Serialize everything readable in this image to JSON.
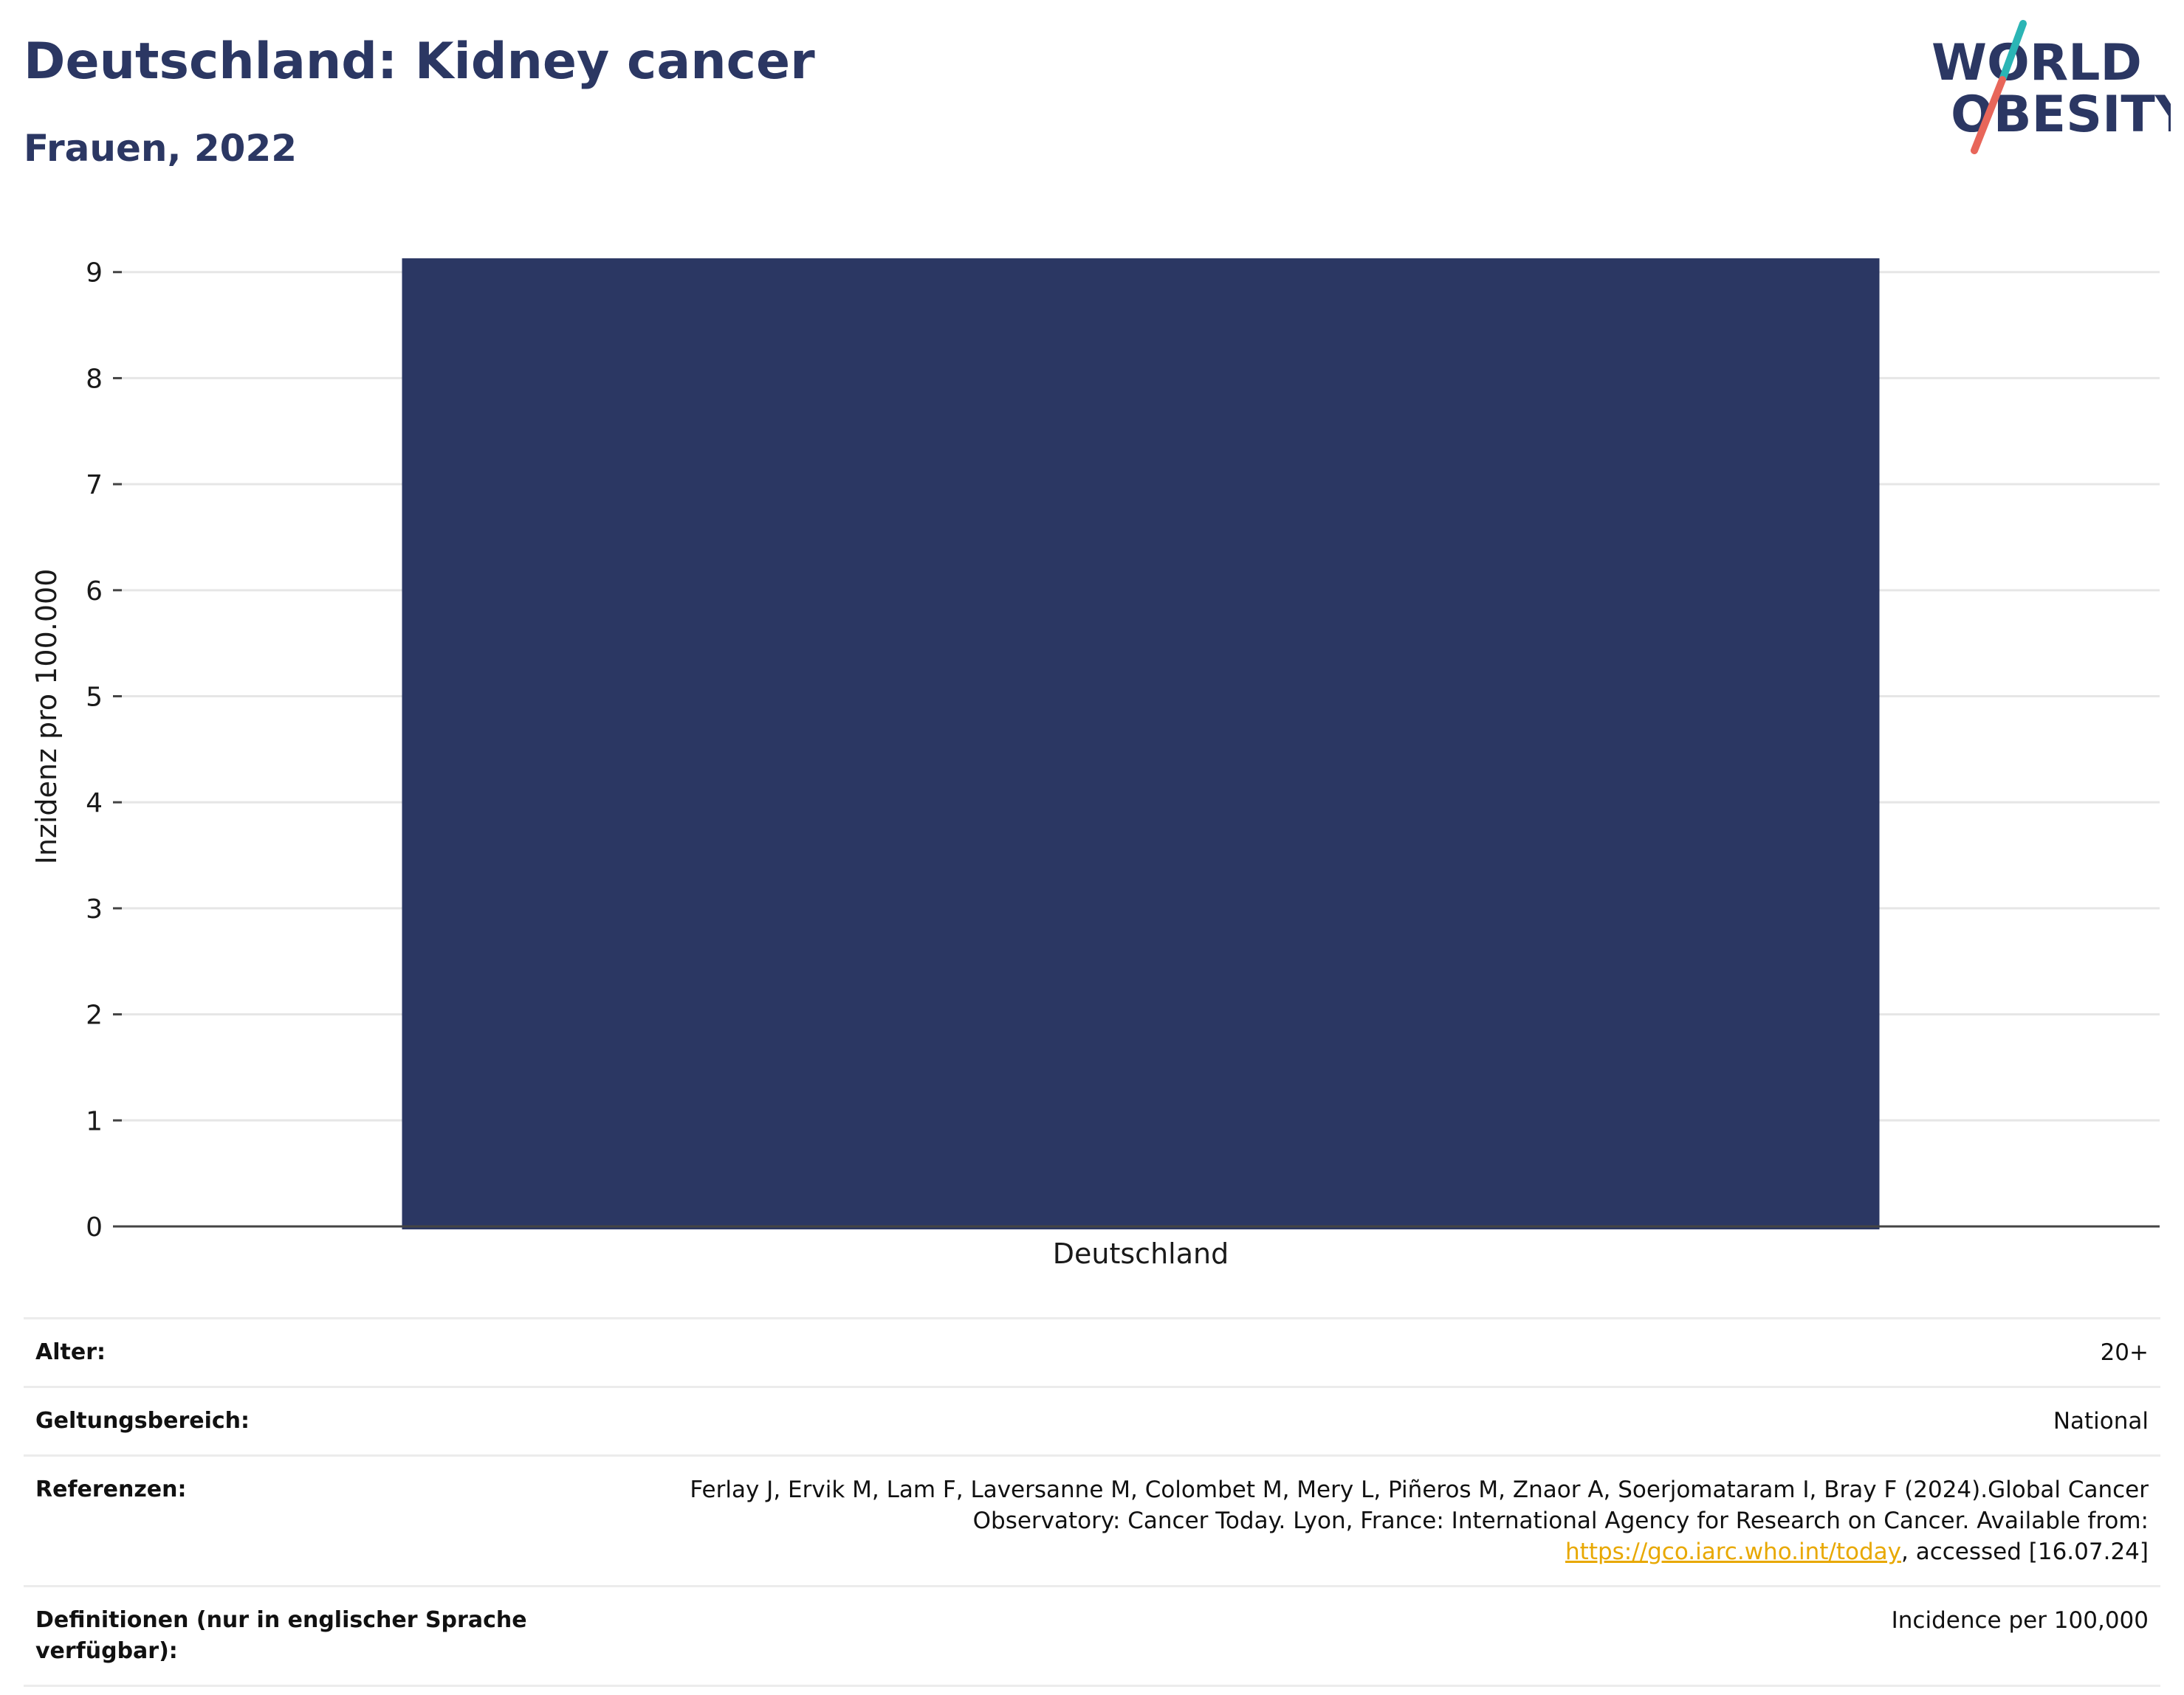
{
  "header": {
    "title": "Deutschland: Kidney cancer",
    "subtitle": "Frauen, 2022"
  },
  "logo": {
    "line1": "WORLD",
    "line2": "OBESITY",
    "colors": {
      "text": "#2b3763",
      "slash_top": "#2bb5b5",
      "slash_bottom": "#e8665a"
    }
  },
  "chart_data": {
    "type": "bar",
    "categories": [
      "Deutschland"
    ],
    "values": [
      9.13
    ],
    "xlabel": "",
    "ylabel": "Inzidenz pro 100.000",
    "ylim": [
      0,
      9.2
    ],
    "yticks": [
      0,
      1,
      2,
      3,
      4,
      5,
      6,
      7,
      8,
      9
    ],
    "grid": true,
    "bar_color": "#2b3763"
  },
  "meta": {
    "rows": [
      {
        "key": "Alter:",
        "value": "20+"
      },
      {
        "key": "Geltungsbereich:",
        "value": "National"
      },
      {
        "key": "Referenzen:",
        "value_before": "Ferlay J, Ervik M, Lam F, Laversanne M, Colombet M, Mery L, Piñeros M, Znaor A, Soerjomataram I, Bray F (2024).Global Cancer Observatory: Cancer Today. Lyon, France: International Agency for Research on Cancer. Available from: ",
        "link": "https://gco.iarc.who.int/today",
        "value_after": ", accessed [16.07.24]"
      },
      {
        "key": "Definitionen (nur in englischer Sprache verfügbar):",
        "value": "Incidence per 100,000"
      }
    ]
  }
}
